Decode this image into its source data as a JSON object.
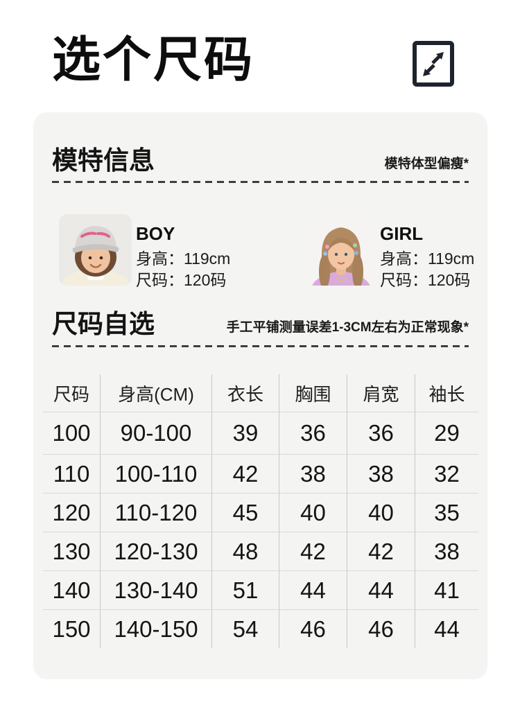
{
  "header": {
    "title": "选个尺码"
  },
  "model_info": {
    "heading": "模特信息",
    "note": "模特体型偏瘦*",
    "models": [
      {
        "label": "BOY",
        "height_line": "身高：119cm",
        "size_line": "尺码：120码"
      },
      {
        "label": "GIRL",
        "height_line": "身高：119cm",
        "size_line": "尺码：120码"
      }
    ]
  },
  "size_section": {
    "heading": "尺码自选",
    "note": "手工平铺测量误差1-3CM左右为正常现象*"
  },
  "size_table": {
    "headers": [
      "尺码",
      "身高(CM)",
      "衣长",
      "胸围",
      "肩宽",
      "袖长"
    ],
    "rows": [
      [
        "100",
        "90-100",
        "39",
        "36",
        "36",
        "29"
      ],
      [
        "110",
        "100-110",
        "42",
        "38",
        "38",
        "32"
      ],
      [
        "120",
        "110-120",
        "45",
        "40",
        "40",
        "35"
      ],
      [
        "130",
        "120-130",
        "48",
        "42",
        "42",
        "38"
      ],
      [
        "140",
        "130-140",
        "51",
        "44",
        "44",
        "41"
      ],
      [
        "150",
        "140-150",
        "54",
        "46",
        "46",
        "44"
      ]
    ]
  },
  "colors": {
    "card_bg": "#f4f4f3",
    "text": "#111111",
    "dash": "#3d3d3d",
    "table_line_horizontal": "#d9d9d9",
    "table_line_vertical": "#c7c7c7",
    "icon": "#1d242e",
    "boy_cap_text": "#e0618f",
    "girl_shirt": "#d9aadc"
  }
}
